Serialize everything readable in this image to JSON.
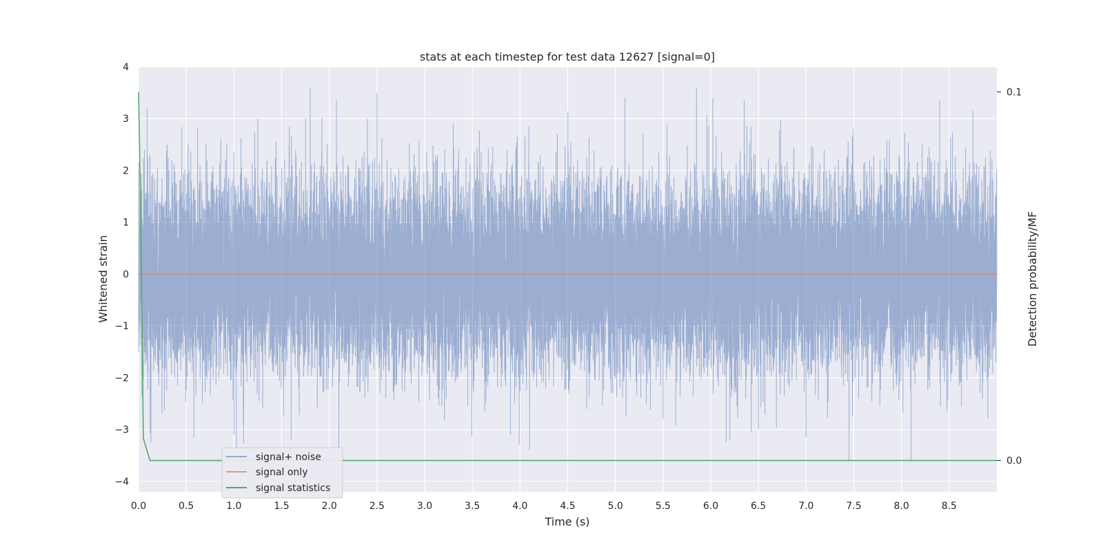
{
  "chart_data": {
    "type": "line",
    "title": "stats at each timestep for test data 12627 [signal=0]",
    "xlabel": "Time (s)",
    "ylabel": "Whitened strain",
    "y2label": "Detection probability/MF",
    "xlim": [
      0.0,
      9.0
    ],
    "ylim": [
      -4.2,
      4.0
    ],
    "y2lim": [
      -0.0085,
      0.1068
    ],
    "xticks": [
      0.0,
      0.5,
      1.0,
      1.5,
      2.0,
      2.5,
      3.0,
      3.5,
      4.0,
      4.5,
      5.0,
      5.5,
      6.0,
      6.5,
      7.0,
      7.5,
      8.0,
      8.5
    ],
    "xtick_labels": [
      "0.0",
      "0.5",
      "1.0",
      "1.5",
      "2.0",
      "2.5",
      "3.0",
      "3.5",
      "4.0",
      "4.5",
      "5.0",
      "5.5",
      "6.0",
      "6.5",
      "7.0",
      "7.5",
      "8.0",
      "8.5"
    ],
    "yticks": [
      4,
      3,
      2,
      1,
      0,
      -1,
      -2,
      -3,
      -4
    ],
    "ytick_labels": [
      "4",
      "3",
      "2",
      "1",
      "0",
      "−1",
      "−2",
      "−3",
      "−4"
    ],
    "y2ticks": [
      0.1,
      0.0
    ],
    "y2tick_labels": [
      "0.1",
      "0.0"
    ],
    "grid": true,
    "legend_position": "lower-left",
    "series": [
      {
        "name": "signal+ noise",
        "color": "#4c72b0",
        "sample_rate": 2048,
        "std": 0.9,
        "peaks": [
          [
            0.09,
            3.2
          ],
          [
            0.13,
            -3.25
          ],
          [
            0.58,
            -3.15
          ],
          [
            1.0,
            -3.1
          ],
          [
            1.25,
            3.0
          ],
          [
            1.6,
            -3.2
          ],
          [
            1.8,
            3.65
          ],
          [
            2.1,
            -3.5
          ],
          [
            2.5,
            3.5
          ],
          [
            3.3,
            2.9
          ],
          [
            3.9,
            -3.1
          ],
          [
            4.1,
            -3.4
          ],
          [
            5.1,
            3.4
          ],
          [
            5.5,
            -2.8
          ],
          [
            5.85,
            3.65
          ],
          [
            6.2,
            -3.2
          ],
          [
            6.5,
            -3.0
          ],
          [
            7.0,
            -3.15
          ],
          [
            7.45,
            -4.0
          ],
          [
            8.1,
            -3.8
          ],
          [
            8.4,
            3.35
          ],
          [
            8.75,
            -3.3
          ],
          [
            8.75,
            3.15
          ],
          [
            0.3,
            2.5
          ],
          [
            2.4,
            3.0
          ]
        ]
      },
      {
        "name": "signal only",
        "color": "#dd8452",
        "x": [
          0.0,
          9.0
        ],
        "y": [
          0.0,
          0.0
        ]
      },
      {
        "name": "signal statistics",
        "color": "#55a868",
        "axis": "right",
        "x": [
          0.0,
          0.012,
          0.03,
          0.05,
          0.12,
          0.3,
          9.0
        ],
        "y": [
          0.1,
          0.083,
          0.05,
          0.006,
          0.0,
          0.0,
          0.0
        ]
      }
    ]
  }
}
